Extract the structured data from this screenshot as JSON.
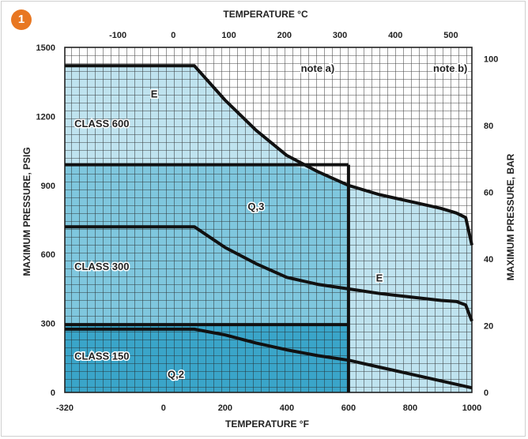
{
  "badge": "1",
  "chart_data": {
    "type": "line",
    "title": "",
    "xlabel_bottom": "TEMPERATURE °F",
    "xlabel_top": "TEMPERATURE °C",
    "ylabel_left": "MAXIMUM PRESSURE, PSIG",
    "ylabel_right": "MAXIMUM PRESSURE, BAR",
    "xlim_f": [
      -320,
      1000
    ],
    "ylim_psig": [
      0,
      1500
    ],
    "bottom_ticks_f": [
      "-320",
      "0",
      "200",
      "400",
      "600",
      "800",
      "1000"
    ],
    "top_ticks_c": [
      "-100",
      "0",
      "100",
      "200",
      "300",
      "400",
      "500"
    ],
    "left_ticks_psig": [
      "0",
      "300",
      "600",
      "900",
      "1200",
      "1500"
    ],
    "right_ticks_bar": [
      "0",
      "20",
      "40",
      "60",
      "80",
      "100"
    ],
    "grid": true,
    "colors": {
      "region_light": "#bfe3ef",
      "region_mid": "#7fc7de",
      "region_dark": "#3aa5c9",
      "line": "#111111",
      "grid": "#222222",
      "badge": "#e87722"
    },
    "series": [
      {
        "name": "CLASS 600",
        "x": [
          -320,
          100,
          200,
          300,
          400,
          500,
          600,
          700,
          800,
          900,
          950,
          980,
          1000
        ],
        "y": [
          1420,
          1420,
          1270,
          1140,
          1030,
          960,
          900,
          860,
          830,
          800,
          780,
          760,
          640
        ]
      },
      {
        "name": "CLASS 300",
        "x": [
          -320,
          100,
          200,
          300,
          400,
          500,
          600,
          700,
          800,
          900,
          950,
          980,
          1000
        ],
        "y": [
          720,
          720,
          630,
          560,
          500,
          470,
          450,
          430,
          415,
          400,
          395,
          380,
          310
        ]
      },
      {
        "name": "CLASS 150",
        "x": [
          -320,
          100,
          200,
          300,
          400,
          500,
          600,
          700,
          800,
          900,
          1000
        ],
        "y": [
          275,
          275,
          250,
          215,
          185,
          160,
          140,
          110,
          80,
          50,
          20
        ]
      }
    ],
    "limit_lines": [
      {
        "x": [
          -320,
          600
        ],
        "y": [
          990,
          990
        ]
      },
      {
        "x": [
          -320,
          600
        ],
        "y": [
          295,
          295
        ]
      },
      {
        "x": [
          600,
          600
        ],
        "y": [
          0,
          990
        ]
      }
    ],
    "annotations": [
      {
        "text": "E",
        "x": -30,
        "y": 1300
      },
      {
        "text": "CLASS 600",
        "x": -200,
        "y": 1170
      },
      {
        "text": "Q,3",
        "x": 300,
        "y": 810
      },
      {
        "text": "CLASS 300",
        "x": -200,
        "y": 550
      },
      {
        "text": "E",
        "x": 700,
        "y": 500
      },
      {
        "text": "CLASS 150",
        "x": -200,
        "y": 160
      },
      {
        "text": "Q,2",
        "x": 40,
        "y": 80
      },
      {
        "text": "note a)",
        "x": 500,
        "y": 1410
      },
      {
        "text": "note b)",
        "x": 930,
        "y": 1410
      }
    ]
  }
}
